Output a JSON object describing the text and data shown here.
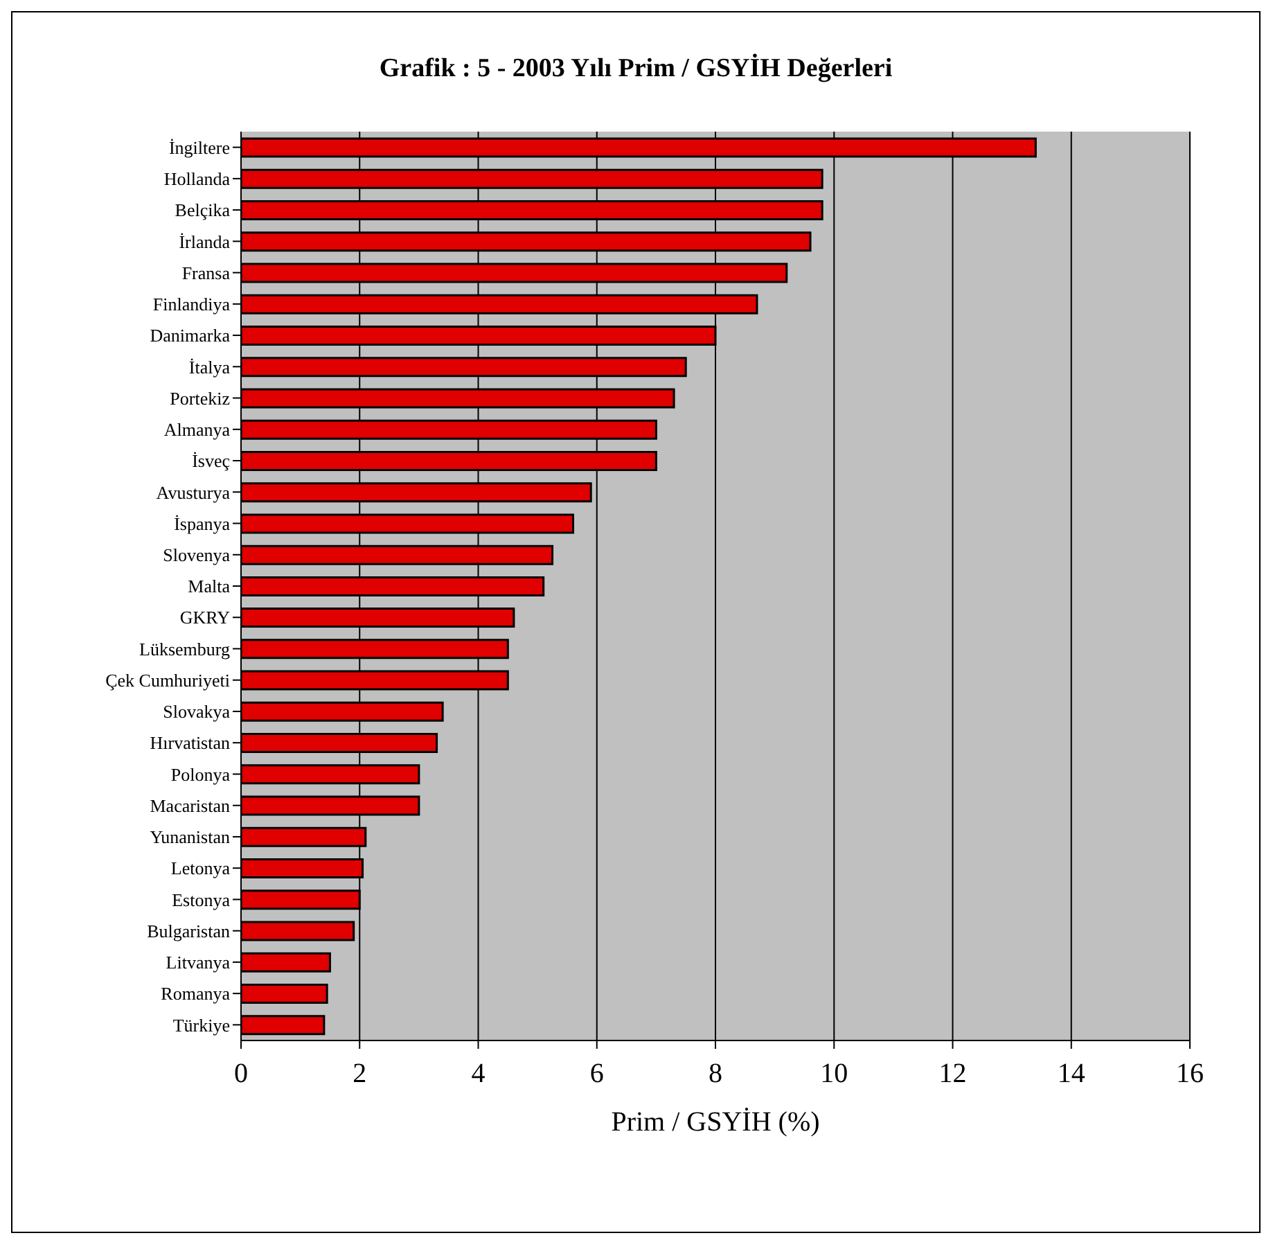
{
  "chart_data": {
    "type": "bar",
    "orientation": "horizontal",
    "title": "Grafik : 5 - 2003 Yılı Prim / GSYİH Değerleri",
    "xlabel": "Prim / GSYİH (%)",
    "categories": [
      "İngiltere",
      "Hollanda",
      "Belçika",
      "İrlanda",
      "Fransa",
      "Finlandiya",
      "Danimarka",
      "İtalya",
      "Portekiz",
      "Almanya",
      "İsveç",
      "Avusturya",
      "İspanya",
      "Slovenya",
      "Malta",
      "GKRY",
      "Lüksemburg",
      "Çek Cumhuriyeti",
      "Slovakya",
      "Hırvatistan",
      "Polonya",
      "Macaristan",
      "Yunanistan",
      "Letonya",
      "Estonya",
      "Bulgaristan",
      "Litvanya",
      "Romanya",
      "Türkiye"
    ],
    "values": [
      13.4,
      9.8,
      9.8,
      9.6,
      9.2,
      8.7,
      8.0,
      7.5,
      7.3,
      7.0,
      7.0,
      5.9,
      5.6,
      5.25,
      5.1,
      4.6,
      4.5,
      4.5,
      3.4,
      3.3,
      3.0,
      3.0,
      2.1,
      2.05,
      2.0,
      1.9,
      1.5,
      1.45,
      1.4
    ],
    "color": "#e00000",
    "xlim": [
      0,
      16
    ],
    "xticks": [
      0,
      2,
      4,
      6,
      8,
      10,
      12,
      14,
      16
    ],
    "grid": "x"
  }
}
